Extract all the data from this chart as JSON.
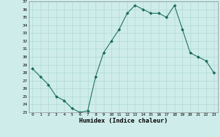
{
  "x": [
    0,
    1,
    2,
    3,
    4,
    5,
    6,
    7,
    8,
    9,
    10,
    11,
    12,
    13,
    14,
    15,
    16,
    17,
    18,
    19,
    20,
    21,
    22,
    23
  ],
  "y": [
    28.5,
    27.5,
    26.5,
    25.0,
    24.5,
    23.5,
    23.0,
    23.2,
    27.5,
    30.5,
    32.0,
    33.5,
    35.5,
    36.5,
    36.0,
    35.5,
    35.5,
    35.0,
    36.5,
    33.5,
    30.5,
    30.0,
    29.5,
    28.0
  ],
  "ylim": [
    23,
    37
  ],
  "yticks": [
    23,
    24,
    25,
    26,
    27,
    28,
    29,
    30,
    31,
    32,
    33,
    34,
    35,
    36,
    37
  ],
  "xlabel": "Humidex (Indice chaleur)",
  "line_color": "#1a6b5a",
  "bg_color": "#ceecea",
  "grid_color": "#aed8d4"
}
